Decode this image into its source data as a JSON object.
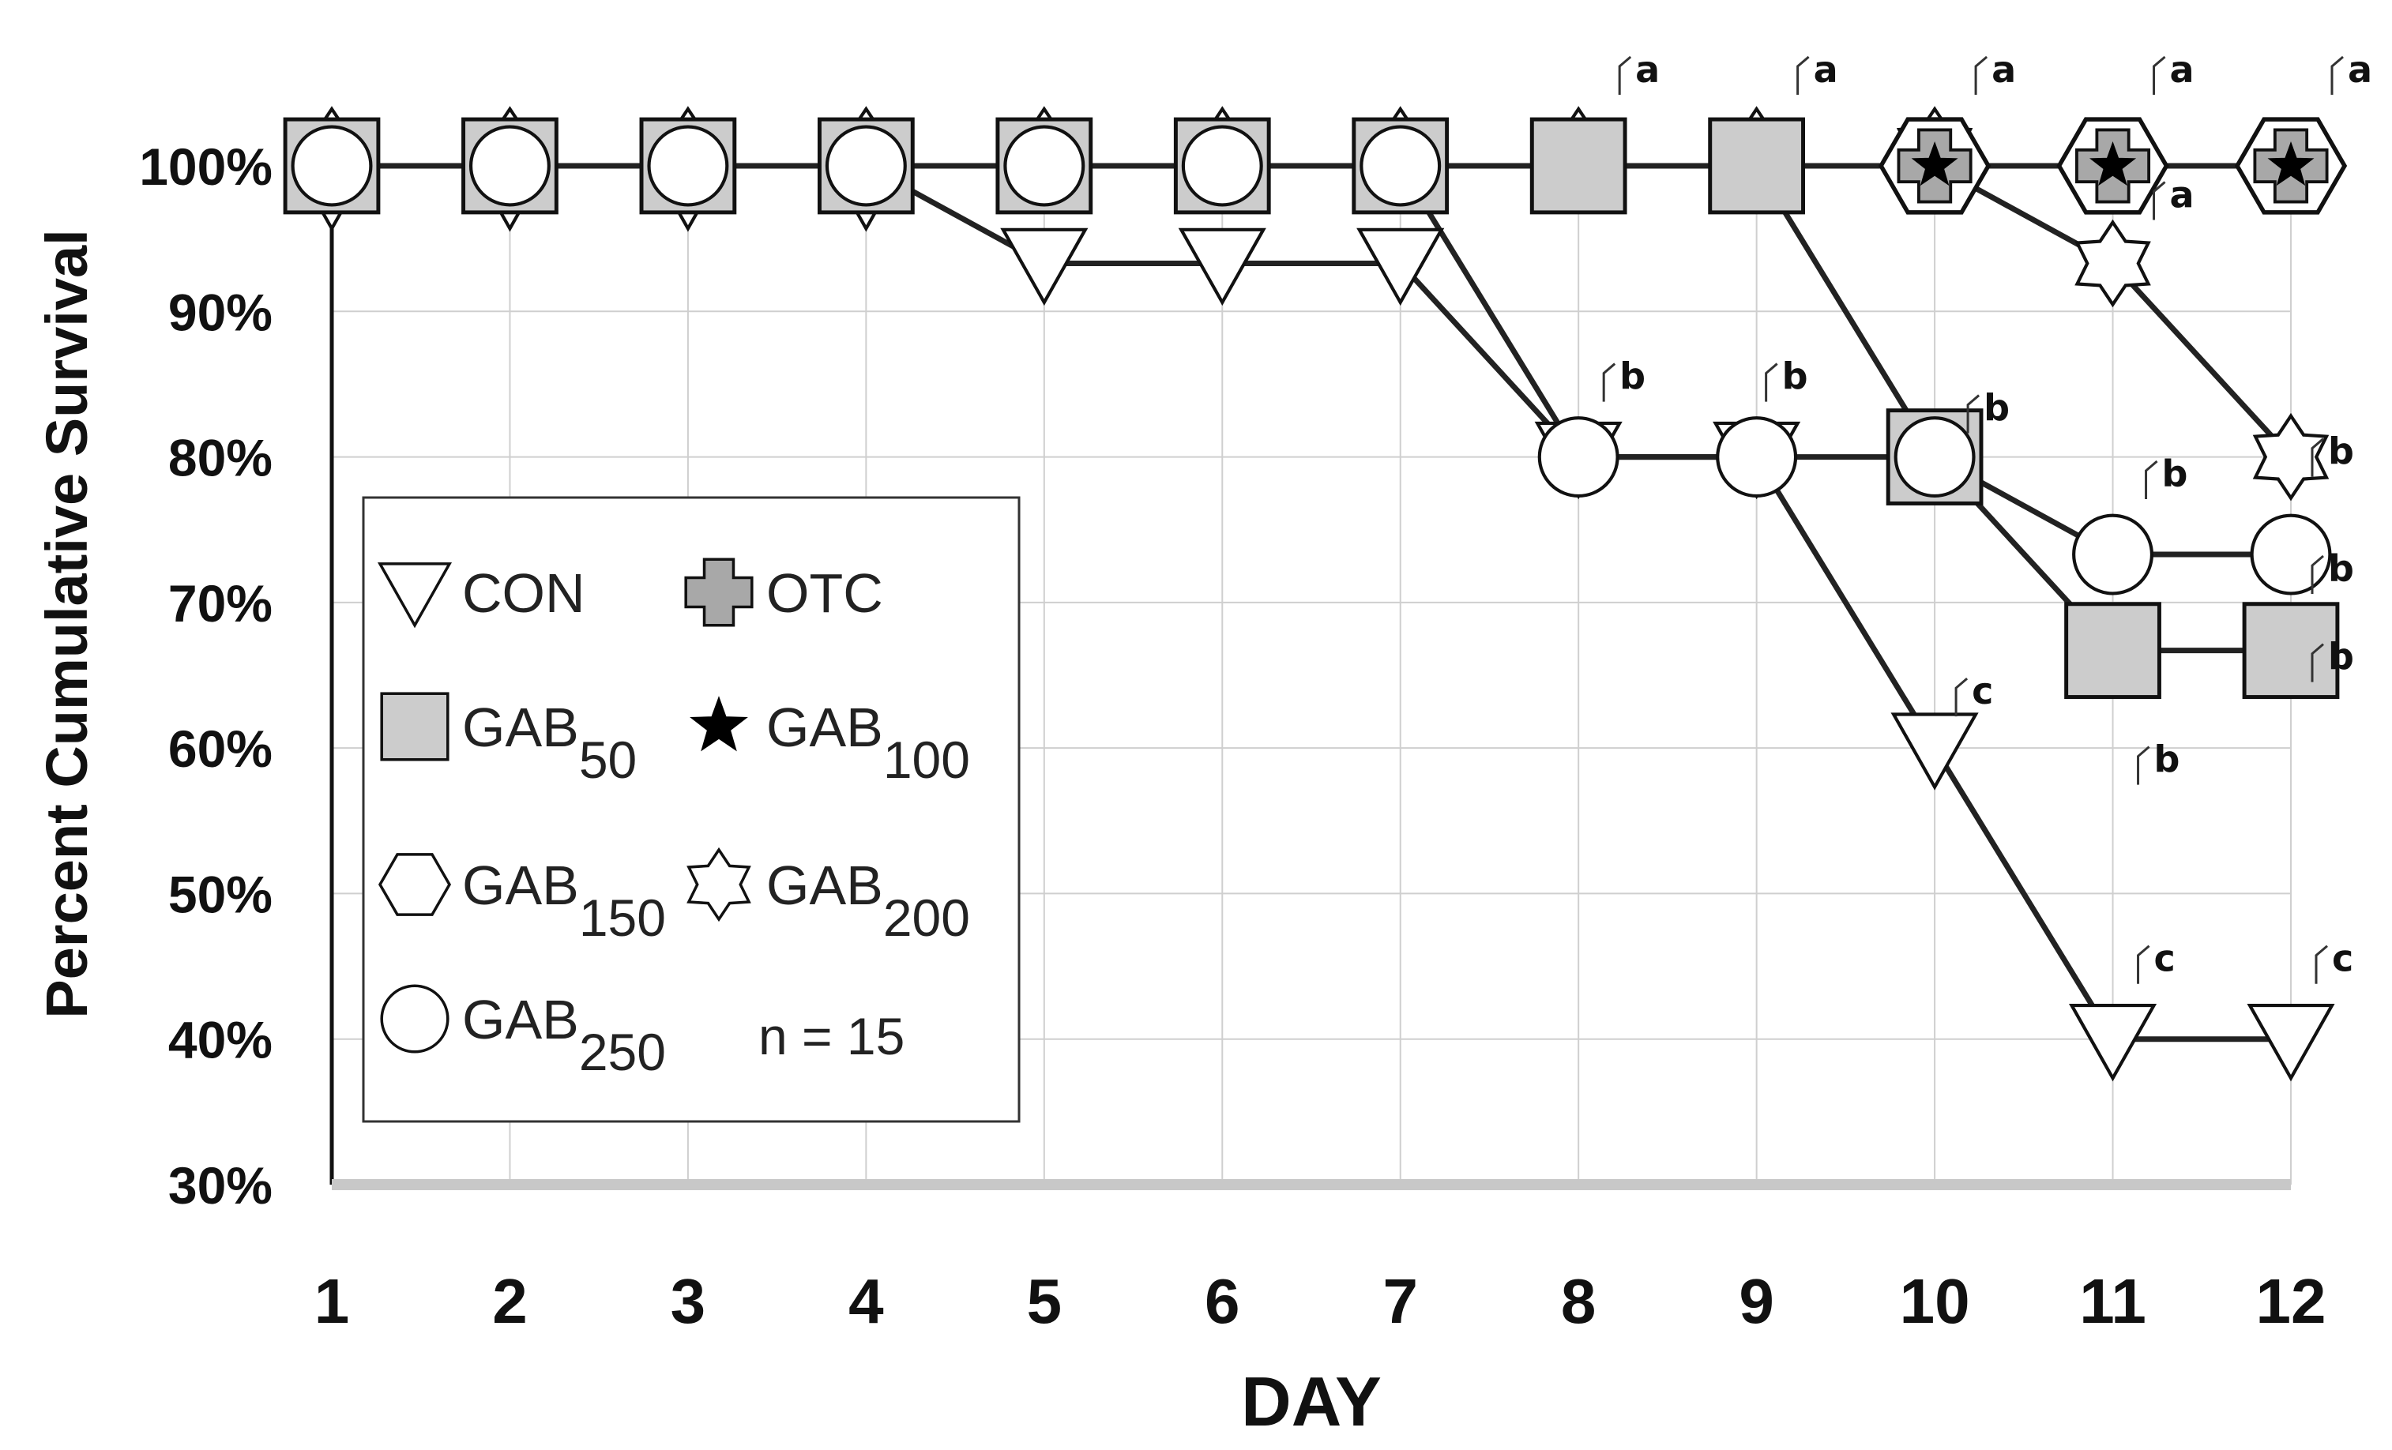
{
  "chart_data": {
    "type": "line",
    "title": "",
    "xlabel": "DAY",
    "ylabel": "Percent Cumulative Survival",
    "x": [
      1,
      2,
      3,
      4,
      5,
      6,
      7,
      8,
      9,
      10,
      11,
      12
    ],
    "x_tick_labels": [
      "1",
      "2",
      "3",
      "4",
      "5",
      "6",
      "7",
      "8",
      "9",
      "10",
      "11",
      "12"
    ],
    "y_tick_labels": [
      "30%",
      "40%",
      "50%",
      "60%",
      "70%",
      "80%",
      "90%",
      "100%"
    ],
    "ylim": [
      30,
      100
    ],
    "xlim": [
      1,
      12
    ],
    "grid": true,
    "legend_position": "bottom-left",
    "series": [
      {
        "name": "CON",
        "marker": "triangle-down",
        "values": [
          100,
          100,
          100,
          100,
          93.3,
          93.3,
          93.3,
          80,
          80,
          60,
          40,
          40
        ]
      },
      {
        "name": "OTC",
        "marker": "cross",
        "values": [
          100,
          100,
          100,
          100,
          100,
          100,
          100,
          100,
          100,
          100,
          100,
          100
        ]
      },
      {
        "name": "GAB50",
        "marker": "square",
        "values": [
          100,
          100,
          100,
          100,
          100,
          100,
          100,
          100,
          100,
          80,
          66.7,
          66.7
        ]
      },
      {
        "name": "GAB100",
        "marker": "star",
        "values": [
          100,
          100,
          100,
          100,
          100,
          100,
          100,
          100,
          100,
          100,
          100,
          100
        ]
      },
      {
        "name": "GAB150",
        "marker": "hexagon",
        "values": [
          100,
          100,
          100,
          100,
          100,
          100,
          100,
          100,
          100,
          100,
          100,
          100
        ]
      },
      {
        "name": "GAB200",
        "marker": "star6",
        "values": [
          100,
          100,
          100,
          100,
          100,
          100,
          100,
          100,
          100,
          100,
          93.3,
          80
        ]
      },
      {
        "name": "GAB250",
        "marker": "circle",
        "values": [
          100,
          100,
          100,
          100,
          100,
          100,
          100,
          80,
          80,
          80,
          73.3,
          73.3
        ]
      }
    ],
    "annotations": [
      {
        "text": "a",
        "day": 8,
        "value": 100
      },
      {
        "text": "a",
        "day": 9,
        "value": 100
      },
      {
        "text": "a",
        "day": 10,
        "value": 100
      },
      {
        "text": "a",
        "day": 11,
        "value": 100
      },
      {
        "text": "a",
        "day": 12,
        "value": 100
      },
      {
        "text": "a",
        "day": 11,
        "value": 93.3
      },
      {
        "text": "b",
        "day": 8,
        "value": 80
      },
      {
        "text": "b",
        "day": 9,
        "value": 80
      },
      {
        "text": "b",
        "day": 10,
        "value": 80
      },
      {
        "text": "b",
        "day": 11,
        "value": 73.3
      },
      {
        "text": "b",
        "day": 12,
        "value": 80
      },
      {
        "text": "b",
        "day": 12,
        "value": 73.3
      },
      {
        "text": "b",
        "day": 12,
        "value": 66.7
      },
      {
        "text": "b",
        "day": 11,
        "value": 66.7
      },
      {
        "text": "c",
        "day": 10,
        "value": 60
      },
      {
        "text": "c",
        "day": 11,
        "value": 40
      },
      {
        "text": "c",
        "day": 12,
        "value": 40
      }
    ],
    "legend": {
      "items": [
        {
          "series": "CON",
          "label": "CON",
          "sub": ""
        },
        {
          "series": "OTC",
          "label": "OTC",
          "sub": ""
        },
        {
          "series": "GAB50",
          "label": "GAB",
          "sub": "50"
        },
        {
          "series": "GAB100",
          "label": "GAB",
          "sub": "100"
        },
        {
          "series": "GAB150",
          "label": "GAB",
          "sub": "150"
        },
        {
          "series": "GAB200",
          "label": "GAB",
          "sub": "200"
        },
        {
          "series": "GAB250",
          "label": "GAB",
          "sub": "250"
        }
      ],
      "note": "n = 15"
    }
  },
  "colors": {
    "line": "#222222",
    "grid": "#cfcfcf",
    "axis_base": "#c8c8c8",
    "marker_gray": "#cccccc",
    "otc_gray": "#a8a8a8",
    "marker_white": "#ffffff",
    "marker_stroke": "#111111"
  }
}
